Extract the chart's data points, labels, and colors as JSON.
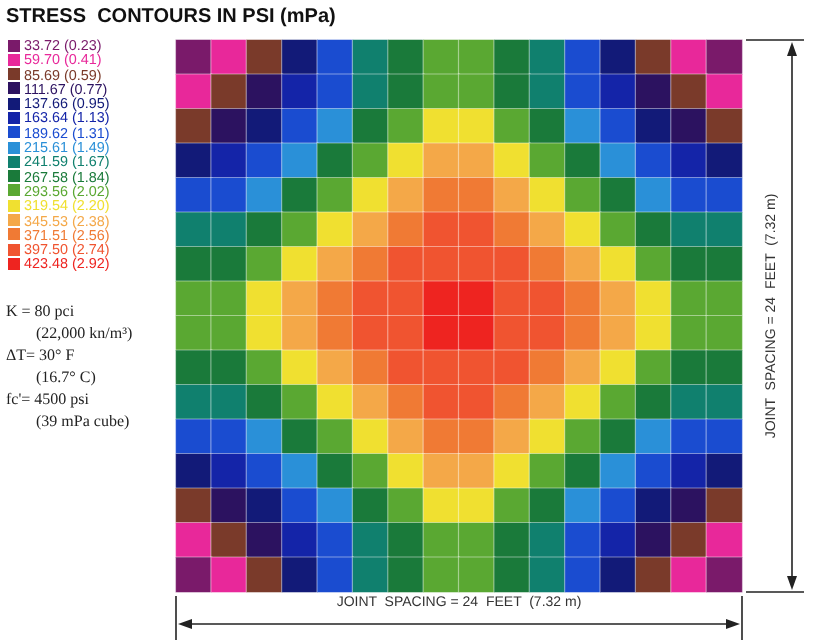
{
  "chart_data": {
    "type": "heatmap",
    "title": "STRESS  CONTOURS IN PSI (mPa)",
    "xlabel": "JOINT  SPACING = 24  FEET  (7.32 m)",
    "ylabel": "JOINT  SPACING = 24  FEET  (7.32 m)",
    "annotations": [
      "K = 80 pci",
      "(22,000 kn/m³)",
      "ΔT= 30° F",
      "(16.7° C)",
      "fc'= 4500 psi",
      "(39 mPa cube)"
    ],
    "categories": [
      null,
      null,
      null,
      null,
      null,
      null,
      null,
      null,
      null,
      null,
      null,
      null,
      null,
      null,
      null,
      null
    ],
    "y_categories": [
      null,
      null,
      null,
      null,
      null,
      null,
      null,
      null,
      null,
      null,
      null,
      null,
      null,
      null,
      null,
      null
    ],
    "cticks": [
      {
        "value": 33.72,
        "label": "33.72 (0.23)"
      },
      {
        "value": 59.7,
        "label": "59.70 (0.41)"
      },
      {
        "value": 85.69,
        "label": "85.69 (0.59)"
      },
      {
        "value": 111.67,
        "label": "111.67 (0.77)"
      },
      {
        "value": 137.66,
        "label": "137.66 (0.95)"
      },
      {
        "value": 163.64,
        "label": "163.64 (1.13)"
      },
      {
        "value": 189.62,
        "label": "189.62 (1.31)"
      },
      {
        "value": 215.61,
        "label": "215.61 (1.49)"
      },
      {
        "value": 241.59,
        "label": "241.59 (1.67)"
      },
      {
        "value": 267.58,
        "label": "267.58 (1.84)"
      },
      {
        "value": 293.56,
        "label": "293.56 (2.02)"
      },
      {
        "value": 319.54,
        "label": "319.54 (2.20)"
      },
      {
        "value": 345.53,
        "label": "345.53 (2.38)"
      },
      {
        "value": 371.51,
        "label": "371.51 (2.56)"
      },
      {
        "value": 397.5,
        "label": "397.50 (2.74)"
      },
      {
        "value": 423.48,
        "label": "423.48 (2.92)"
      }
    ],
    "colors": [
      "#7a1a6a",
      "#e8289a",
      "#7a3a2a",
      "#2c1260",
      "#121a78",
      "#1424a8",
      "#1a4cd0",
      "#2a90d8",
      "#10806e",
      "#1a7a3a",
      "#5aa832",
      "#f0e030",
      "#f4a848",
      "#f07a34",
      "#f05430",
      "#ee2420"
    ],
    "cells": [
      [
        33.72,
        59.7,
        85.69,
        137.66,
        189.62,
        241.59,
        267.58,
        293.56,
        293.56,
        267.58,
        241.59,
        189.62,
        137.66,
        85.69,
        59.7,
        33.72
      ],
      [
        59.7,
        85.69,
        111.67,
        163.64,
        189.62,
        241.59,
        267.58,
        293.56,
        293.56,
        267.58,
        241.59,
        189.62,
        163.64,
        111.67,
        85.69,
        59.7
      ],
      [
        85.69,
        111.67,
        137.66,
        189.62,
        215.61,
        267.58,
        293.56,
        319.54,
        319.54,
        293.56,
        267.58,
        215.61,
        189.62,
        137.66,
        111.67,
        85.69
      ],
      [
        137.66,
        163.64,
        189.62,
        215.61,
        267.58,
        293.56,
        319.54,
        345.53,
        345.53,
        319.54,
        293.56,
        267.58,
        215.61,
        189.62,
        163.64,
        137.66
      ],
      [
        189.62,
        189.62,
        215.61,
        267.58,
        293.56,
        319.54,
        345.53,
        371.51,
        371.51,
        345.53,
        319.54,
        293.56,
        267.58,
        215.61,
        189.62,
        189.62
      ],
      [
        241.59,
        241.59,
        267.58,
        293.56,
        319.54,
        345.53,
        371.51,
        397.5,
        397.5,
        371.51,
        345.53,
        319.54,
        293.56,
        267.58,
        241.59,
        241.59
      ],
      [
        267.58,
        267.58,
        293.56,
        319.54,
        345.53,
        371.51,
        397.5,
        397.5,
        397.5,
        397.5,
        371.51,
        345.53,
        319.54,
        293.56,
        267.58,
        267.58
      ],
      [
        293.56,
        293.56,
        319.54,
        345.53,
        371.51,
        397.5,
        397.5,
        423.48,
        423.48,
        397.5,
        397.5,
        371.51,
        345.53,
        319.54,
        293.56,
        293.56
      ],
      [
        293.56,
        293.56,
        319.54,
        345.53,
        371.51,
        397.5,
        397.5,
        423.48,
        423.48,
        397.5,
        397.5,
        371.51,
        345.53,
        319.54,
        293.56,
        293.56
      ],
      [
        267.58,
        267.58,
        293.56,
        319.54,
        345.53,
        371.51,
        397.5,
        397.5,
        397.5,
        397.5,
        371.51,
        345.53,
        319.54,
        293.56,
        267.58,
        267.58
      ],
      [
        241.59,
        241.59,
        267.58,
        293.56,
        319.54,
        345.53,
        371.51,
        397.5,
        397.5,
        371.51,
        345.53,
        319.54,
        293.56,
        267.58,
        241.59,
        241.59
      ],
      [
        189.62,
        189.62,
        215.61,
        267.58,
        293.56,
        319.54,
        345.53,
        371.51,
        371.51,
        345.53,
        319.54,
        293.56,
        267.58,
        215.61,
        189.62,
        189.62
      ],
      [
        137.66,
        163.64,
        189.62,
        215.61,
        267.58,
        293.56,
        319.54,
        345.53,
        345.53,
        319.54,
        293.56,
        267.58,
        215.61,
        189.62,
        163.64,
        137.66
      ],
      [
        85.69,
        111.67,
        137.66,
        189.62,
        215.61,
        267.58,
        293.56,
        319.54,
        319.54,
        293.56,
        267.58,
        215.61,
        189.62,
        137.66,
        111.67,
        85.69
      ],
      [
        59.7,
        85.69,
        111.67,
        163.64,
        189.62,
        241.59,
        267.58,
        293.56,
        293.56,
        267.58,
        241.59,
        189.62,
        163.64,
        111.67,
        85.69,
        59.7
      ],
      [
        33.72,
        59.7,
        85.69,
        137.66,
        189.62,
        241.59,
        267.58,
        293.56,
        293.56,
        267.58,
        241.59,
        189.62,
        137.66,
        85.69,
        59.7,
        33.72
      ]
    ]
  }
}
